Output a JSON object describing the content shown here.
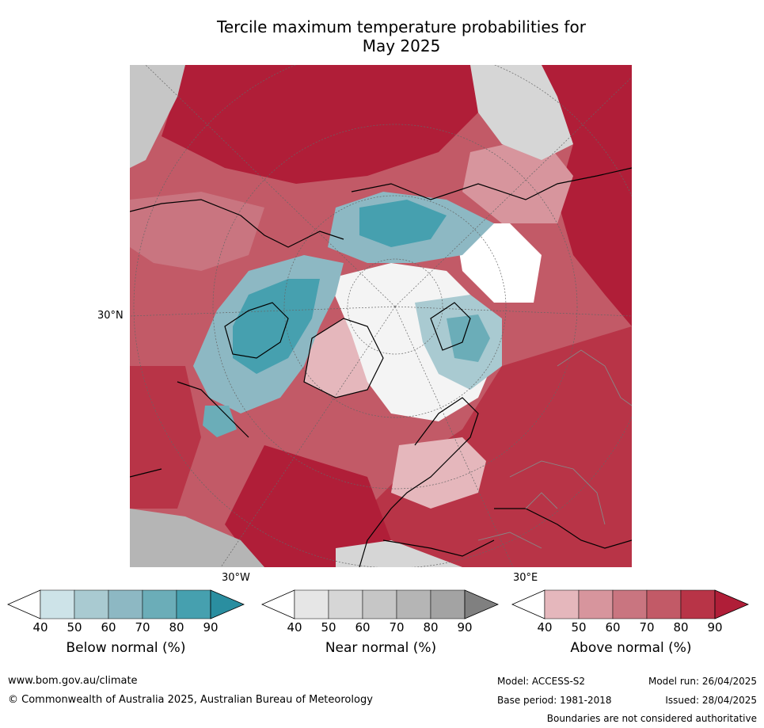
{
  "title": {
    "line1": "Tercile maximum temperature probabilities for",
    "line2": "May 2025"
  },
  "map_labels": {
    "lat_30n": "30°N",
    "lon_30w": "30°W",
    "lon_30e": "30°E"
  },
  "legend": {
    "ticks": [
      "40",
      "50",
      "60",
      "70",
      "80",
      "90"
    ],
    "below": {
      "caption": "Below normal (%)",
      "colors": [
        "#cde3e8",
        "#a9cad1",
        "#8db8c3",
        "#6badb8",
        "#46a0af",
        "#2a8ea0"
      ]
    },
    "near": {
      "caption": "Near normal (%)",
      "colors": [
        "#e6e6e6",
        "#d6d6d6",
        "#c6c6c6",
        "#b5b5b5",
        "#a3a3a3",
        "#808080"
      ]
    },
    "above": {
      "caption": "Above normal (%)",
      "colors": [
        "#e5b7bc",
        "#d7959d",
        "#c97580",
        "#c25a67",
        "#b83447",
        "#b01e38"
      ]
    }
  },
  "footer": {
    "website": "www.bom.gov.au/climate",
    "copyright": "© Commonwealth of Australia 2025, Australian Bureau of Meteorology",
    "model": "Model: ACCESS-S2",
    "base_period": "Base period: 1981-2018",
    "model_run": "Model run: 26/04/2025",
    "issued": "Issued: 28/04/2025",
    "disclaimer": "Boundaries are not considered authoritative"
  }
}
